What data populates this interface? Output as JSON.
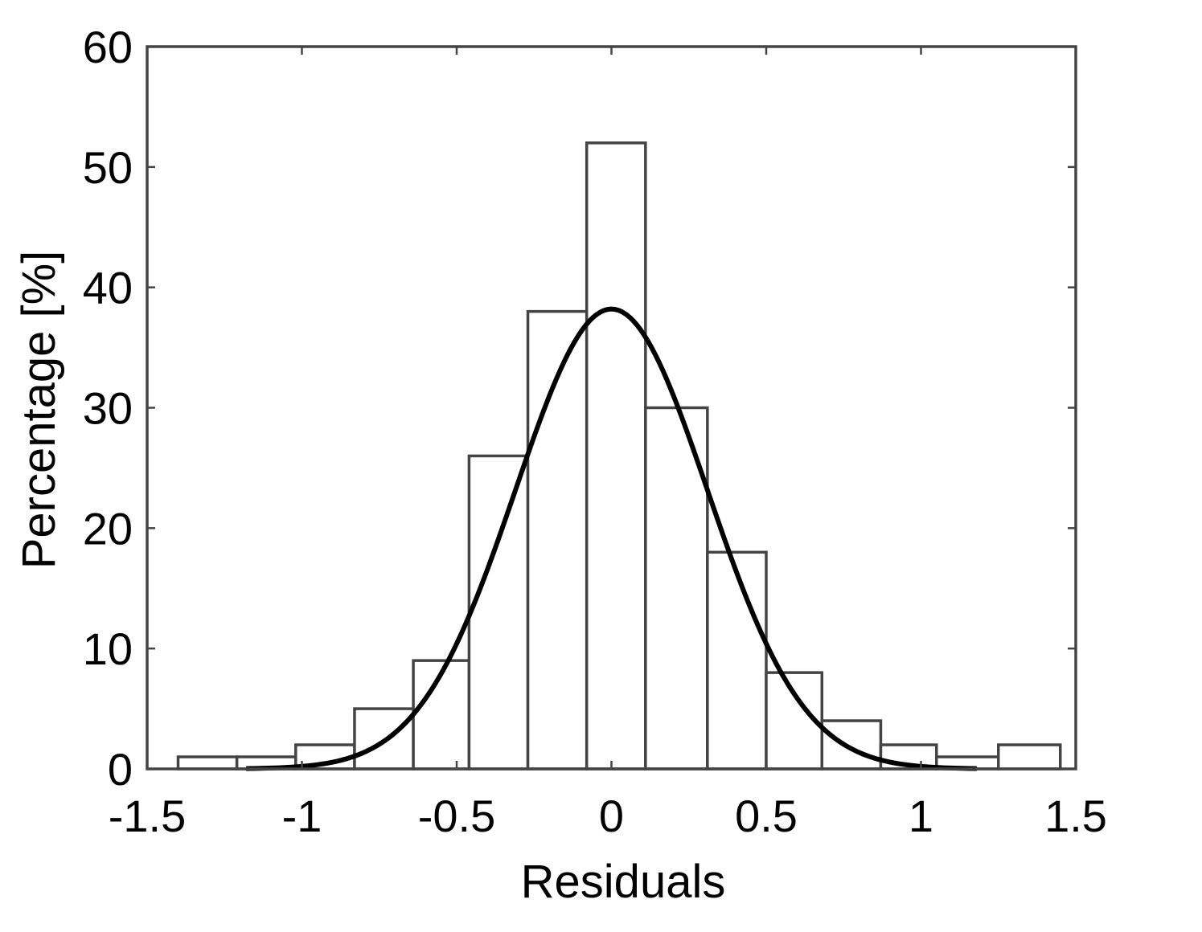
{
  "chart_data": {
    "type": "bar",
    "title": "",
    "xlabel": "Residuals",
    "ylabel": "Percentage [%]",
    "xlim": [
      -1.5,
      1.5
    ],
    "ylim": [
      0,
      60
    ],
    "x_ticks": [
      "-1.5",
      "-1",
      "-0.5",
      "0",
      "0.5",
      "1",
      "1.5"
    ],
    "x_tick_values": [
      -1.5,
      -1,
      -0.5,
      0,
      0.5,
      1,
      1.5
    ],
    "y_ticks": [
      "0",
      "10",
      "20",
      "30",
      "40",
      "50",
      "60"
    ],
    "y_tick_values": [
      0,
      10,
      20,
      30,
      40,
      50,
      60
    ],
    "grid": false,
    "legend": false,
    "bins": [
      {
        "x0": -1.4,
        "x1": -1.21,
        "value": 1
      },
      {
        "x0": -1.21,
        "x1": -1.02,
        "value": 1
      },
      {
        "x0": -1.02,
        "x1": -0.83,
        "value": 2
      },
      {
        "x0": -0.83,
        "x1": -0.64,
        "value": 5
      },
      {
        "x0": -0.64,
        "x1": -0.46,
        "value": 9
      },
      {
        "x0": -0.46,
        "x1": -0.27,
        "value": 26
      },
      {
        "x0": -0.27,
        "x1": -0.08,
        "value": 38
      },
      {
        "x0": -0.08,
        "x1": 0.11,
        "value": 52
      },
      {
        "x0": 0.11,
        "x1": 0.31,
        "value": 30
      },
      {
        "x0": 0.31,
        "x1": 0.5,
        "value": 18
      },
      {
        "x0": 0.5,
        "x1": 0.68,
        "value": 8
      },
      {
        "x0": 0.68,
        "x1": 0.87,
        "value": 4
      },
      {
        "x0": 0.87,
        "x1": 1.05,
        "value": 2
      },
      {
        "x0": 1.05,
        "x1": 1.25,
        "value": 1
      },
      {
        "x0": 1.25,
        "x1": 1.45,
        "value": 2
      }
    ],
    "fit": {
      "type": "normal",
      "mean": 0,
      "std": 0.31,
      "peak": 38.2,
      "x_range": [
        -1.18,
        1.18
      ]
    }
  }
}
